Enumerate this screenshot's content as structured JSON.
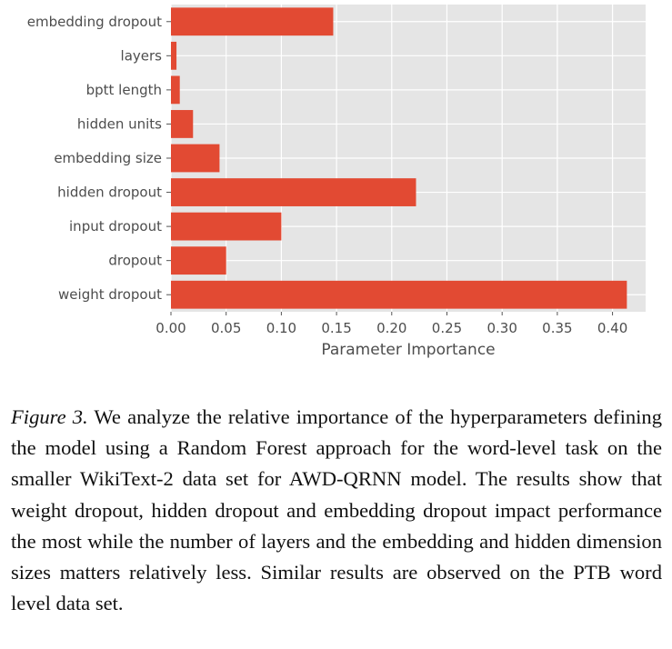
{
  "chart_data": {
    "type": "bar",
    "orientation": "horizontal",
    "categories": [
      "embedding dropout",
      "layers",
      "bptt length",
      "hidden units",
      "embedding size",
      "hidden dropout",
      "input dropout",
      "dropout",
      "weight dropout"
    ],
    "values": [
      0.147,
      0.005,
      0.008,
      0.02,
      0.044,
      0.222,
      0.1,
      0.05,
      0.413
    ],
    "xlabel": "Parameter Importance",
    "ylabel": "",
    "xlim": [
      0.0,
      0.43
    ],
    "xticks": [
      "0.00",
      "0.05",
      "0.10",
      "0.15",
      "0.20",
      "0.25",
      "0.30",
      "0.35",
      "0.40"
    ],
    "grid": true,
    "bar_color": "#e24a33",
    "background_color": "#e5e5e5",
    "grid_color": "#ffffff"
  },
  "caption": {
    "label": "Figure 3.",
    "text": " We analyze the relative importance of the hyperparameters defining the model using a Random Forest approach for the word-level task on the smaller WikiText-2 data set for AWD-QRNN model.  The results show that weight dropout, hidden dropout and embedding dropout impact performance the most while the number of layers and the embedding and hidden dimension sizes matters relatively less. Similar results are observed on the PTB word level data set."
  }
}
